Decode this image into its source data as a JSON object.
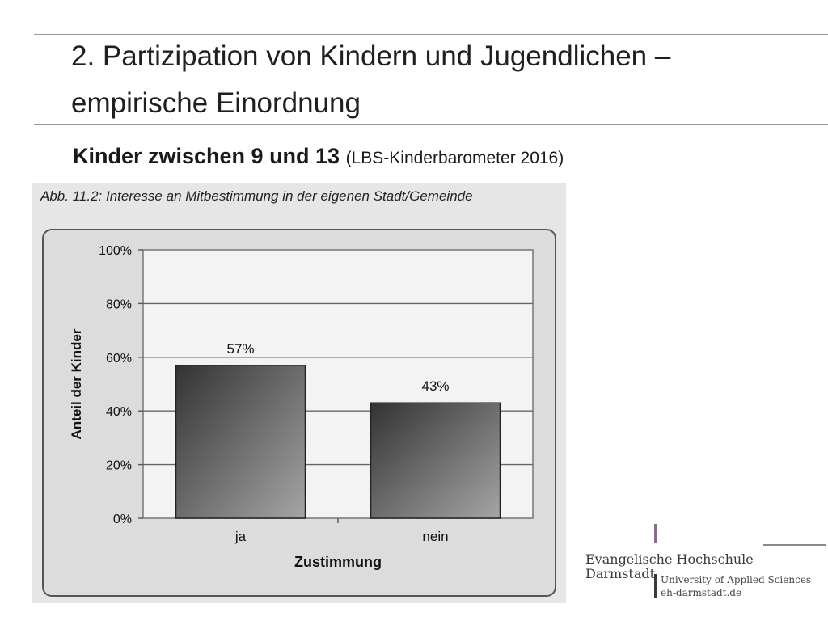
{
  "slide": {
    "title_line_1": "2. Partizipation von Kindern und Jugendlichen –",
    "title_line_2": "empirische Einordnung",
    "subtitle_bold": "Kinder zwischen 9 und 13",
    "subtitle_source": "(LBS-Kinderbarometer 2016)"
  },
  "figure": {
    "caption": "Abb. 11.2: Interesse an Mitbestimmung in der eigenen Stadt/Gemeinde"
  },
  "chart_data": {
    "type": "bar",
    "categories": [
      "ja",
      "nein"
    ],
    "values": [
      57,
      43
    ],
    "value_labels": [
      "57%",
      "43%"
    ],
    "title": "Interesse an Mitbestimmung in der eigenen Stadt/Gemeinde",
    "xlabel": "Zustimmung",
    "ylabel": "Anteil der Kinder",
    "ylim": [
      0,
      100
    ],
    "yticks": [
      0,
      20,
      40,
      60,
      80,
      100
    ],
    "ytick_labels": [
      "0%",
      "20%",
      "40%",
      "60%",
      "80%",
      "100%"
    ],
    "grid": true
  },
  "logo": {
    "name_line_1": "Evangelische Hochschule",
    "name_line_2": "Darmstadt",
    "tagline": "University of Applied Sciences",
    "url": "eh-darmstadt.de"
  },
  "colors": {
    "bar_dark": "#3a3a3a",
    "bar_light": "#9a9a9a",
    "plot_bg": "#f2f2f2",
    "accent": "#8b6a8e"
  }
}
